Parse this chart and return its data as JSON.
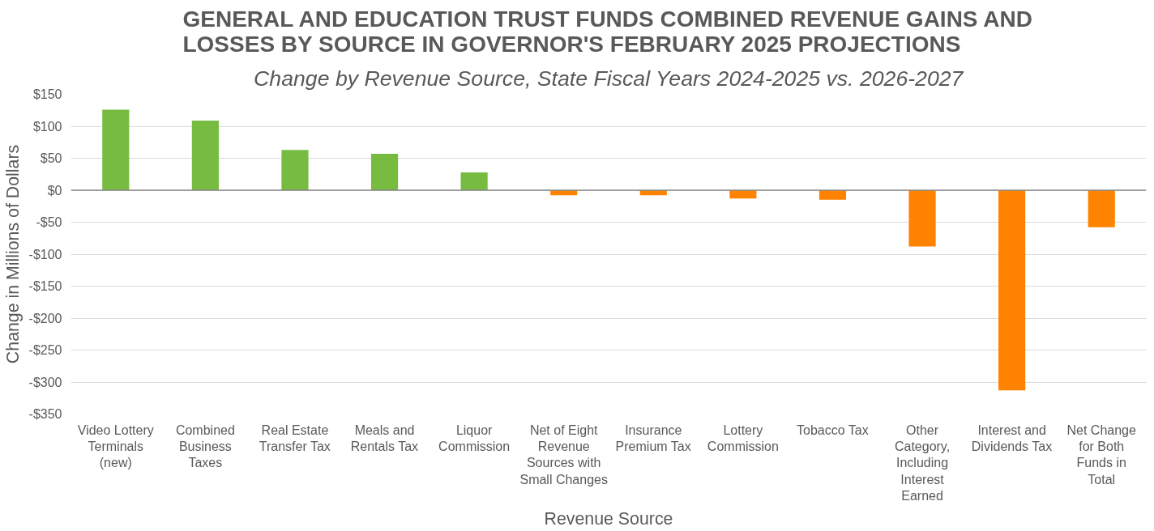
{
  "chart_data": {
    "type": "bar",
    "title": "GENERAL AND EDUCATION TRUST FUNDS COMBINED REVENUE GAINS AND LOSSES BY SOURCE IN GOVERNOR'S FEBRUARY 2025 PROJECTIONS",
    "subtitle": "Change by Revenue Source, State Fiscal Years 2024-2025 vs. 2026-2027",
    "xlabel": "Revenue Source",
    "ylabel": "Change in Millions of Dollars",
    "categories": [
      "Video Lottery Terminals (new)",
      "Combined Business Taxes",
      "Real Estate Transfer Tax",
      "Meals and Rentals Tax",
      "Liquor Commission",
      "Net of Eight Revenue Sources with Small Changes",
      "Insurance Premium Tax",
      "Lottery Commission",
      "Tobacco Tax",
      "Other Category, Including Interest Earned",
      "Interest and Dividends Tax",
      "Net Change for Both Funds in Total"
    ],
    "values": [
      126,
      109,
      63,
      57,
      28,
      -8,
      -8,
      -13,
      -15,
      -88,
      -313,
      -58
    ],
    "colors": [
      "#77bb41",
      "#77bb41",
      "#77bb41",
      "#77bb41",
      "#77bb41",
      "#ff8200",
      "#ff8200",
      "#ff8200",
      "#ff8200",
      "#ff8200",
      "#ff8200",
      "#ff8200"
    ],
    "ylim": [
      -350,
      150
    ],
    "yticks": [
      {
        "value": 150,
        "label": "$150"
      },
      {
        "value": 100,
        "label": "$100"
      },
      {
        "value": 50,
        "label": "$50"
      },
      {
        "value": 0,
        "label": "$0"
      },
      {
        "value": -50,
        "label": "-$50"
      },
      {
        "value": -100,
        "label": "-$100"
      },
      {
        "value": -150,
        "label": "-$150"
      },
      {
        "value": -200,
        "label": "-$200"
      },
      {
        "value": -250,
        "label": "-$250"
      },
      {
        "value": -300,
        "label": "-$300"
      },
      {
        "value": -350,
        "label": "-$350"
      }
    ],
    "grid": "y"
  }
}
